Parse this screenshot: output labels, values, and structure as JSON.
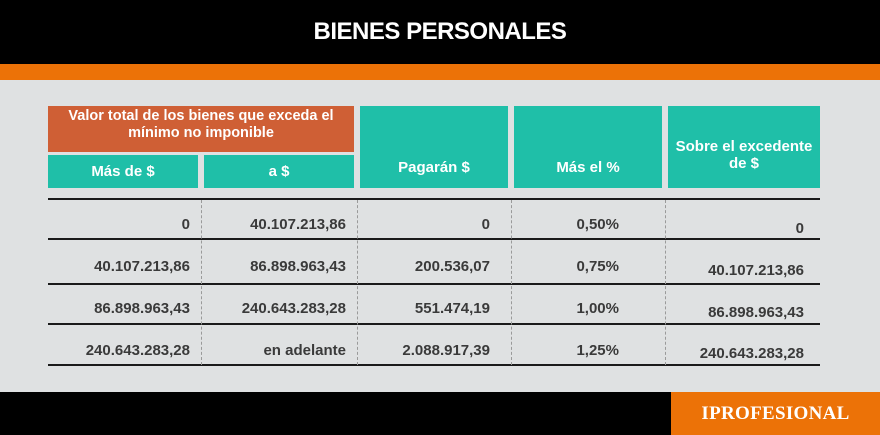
{
  "header": {
    "title": "BIENES PERSONALES"
  },
  "table": {
    "group_header": "Valor total de los bienes que exceda el mínimo no imponible",
    "columns": [
      "Más de $",
      "a $",
      "Pagarán $",
      "Más el %",
      "Sobre el excedente de $"
    ],
    "rows": [
      [
        "0",
        "40.107.213,86",
        "0",
        "0,50%",
        "0"
      ],
      [
        "40.107.213,86",
        "86.898.963,43",
        "200.536,07",
        "0,75%",
        "40.107.213,86"
      ],
      [
        "86.898.963,43",
        "240.643.283,28",
        "551.474,19",
        "1,00%",
        "86.898.963,43"
      ],
      [
        "240.643.283,28",
        "en adelante",
        "2.088.917,39",
        "1,25%",
        "240.643.283,28"
      ]
    ]
  },
  "footer": {
    "logo_text": "IPROFESIONAL"
  },
  "colors": {
    "orange": "#ec7207",
    "teal": "#1fbfa8",
    "rust": "#cf5f35",
    "background": "#dfe1e2"
  }
}
